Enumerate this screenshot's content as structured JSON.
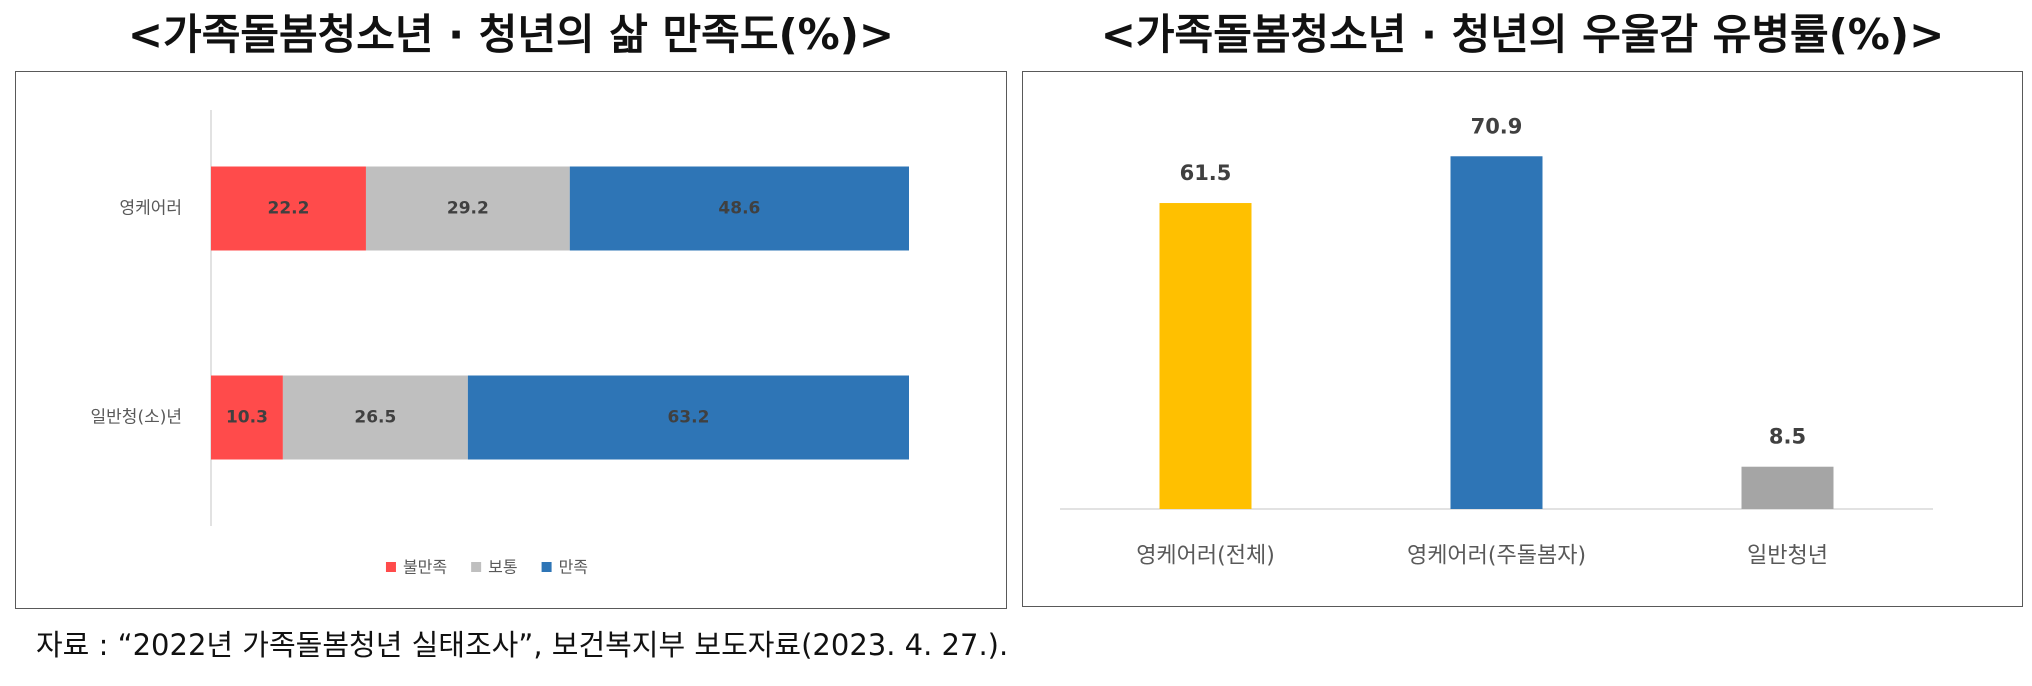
{
  "chart_data": [
    {
      "type": "bar",
      "orientation": "horizontal",
      "stacked": true,
      "title": "<가족돌봄청소년 · 청년의 삶 만족도(%)>",
      "categories": [
        "영케어러",
        "일반청(소)년"
      ],
      "series": [
        {
          "name": "불만족",
          "values": [
            22.2,
            10.3
          ],
          "color": "#FF4B4B"
        },
        {
          "name": "보통",
          "values": [
            29.2,
            26.5
          ],
          "color": "#BFBFBF"
        },
        {
          "name": "만족",
          "values": [
            48.6,
            63.2
          ],
          "color": "#2E75B6"
        }
      ],
      "xlim": [
        0,
        100
      ],
      "grid": false,
      "legend": "bottom"
    },
    {
      "type": "bar",
      "orientation": "vertical",
      "title": "<가족돌봄청소년 · 청년의 우울감 유병률(%)>",
      "categories": [
        "영케어러(전체)",
        "영케어러(주돌봄자)",
        "일반청년"
      ],
      "values": [
        61.5,
        70.9,
        8.5
      ],
      "colors": [
        "#FFC000",
        "#2E75B6",
        "#A5A5A5"
      ],
      "ylim": [
        0,
        80
      ],
      "grid": false,
      "legend": "none"
    }
  ],
  "source": "자료 : “2022년 가족돌봄청년 실태조사”, 보건복지부 보도자료(2023. 4. 27.)."
}
